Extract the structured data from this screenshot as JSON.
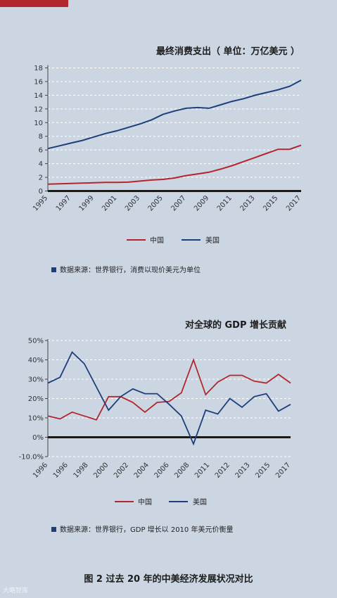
{
  "figure_caption": "图 2 过去 20 年的中美经济发展状况对比",
  "watermark": "大略智库",
  "colors": {
    "china": "#b3262d",
    "usa": "#1d3e7a",
    "accent_bar": "#b3262d",
    "background": "#ccd6e3"
  },
  "chart_data": [
    {
      "type": "line",
      "title": "最终消费支出（ 单位：万亿美元 ）",
      "y_ticks": [
        "0",
        "2",
        "4",
        "6",
        "8",
        "10",
        "12",
        "14",
        "16",
        "18"
      ],
      "ylim": [
        0,
        18
      ],
      "x_tick_labels": [
        "1995",
        "1997",
        "1999",
        "2001",
        "2003",
        "2005",
        "2007",
        "2009",
        "2011",
        "2013",
        "2015",
        "2017"
      ],
      "x": [
        1995,
        1996,
        1997,
        1998,
        1999,
        2000,
        2001,
        2002,
        2003,
        2004,
        2005,
        2006,
        2007,
        2008,
        2009,
        2010,
        2011,
        2012,
        2013,
        2014,
        2015,
        2016,
        2017
      ],
      "series": [
        {
          "name": "中国",
          "color": "#b3262d",
          "values": [
            1.0,
            1.05,
            1.1,
            1.15,
            1.2,
            1.25,
            1.25,
            1.3,
            1.45,
            1.6,
            1.7,
            1.9,
            2.25,
            2.5,
            2.75,
            3.2,
            3.7,
            4.3,
            4.9,
            5.5,
            6.1,
            6.1,
            6.7
          ]
        },
        {
          "name": "美国",
          "color": "#1d3e7a",
          "values": [
            6.2,
            6.6,
            7.0,
            7.4,
            7.9,
            8.4,
            8.8,
            9.3,
            9.8,
            10.4,
            11.2,
            11.7,
            12.1,
            12.2,
            12.1,
            12.6,
            13.1,
            13.5,
            14.0,
            14.4,
            14.8,
            15.3,
            16.2
          ]
        }
      ],
      "grid": "horizontal dashed",
      "legend": "bottom",
      "source": "数据来源：世界银行，消费以现价美元为单位"
    },
    {
      "type": "line",
      "title": "对全球的 GDP 增长贡献",
      "y_ticks": [
        "-10.0%",
        "0%",
        "10%",
        "20%",
        "30%",
        "40%",
        "50%"
      ],
      "ylim": [
        -10,
        50
      ],
      "x_tick_labels": [
        "1996",
        "1996",
        "1998",
        "2000",
        "2002",
        "2004",
        "2006",
        "2008",
        "2011",
        "2012",
        "2013",
        "2015",
        "2017"
      ],
      "series": [
        {
          "name": "中国",
          "color": "#b3262d",
          "values": [
            11,
            9.5,
            13,
            11,
            9,
            21,
            21,
            18,
            13,
            18,
            18.5,
            23,
            40,
            22,
            28.5,
            32,
            32,
            29,
            28,
            32.5,
            28
          ]
        },
        {
          "name": "美国",
          "color": "#1d3e7a",
          "values": [
            28,
            31,
            44,
            38,
            26,
            14,
            21,
            25,
            22.5,
            22.5,
            17,
            11,
            -3.5,
            14,
            12,
            20,
            15.5,
            21,
            22.5,
            13.5,
            17
          ]
        }
      ],
      "zero_line": true,
      "grid": "horizontal dashed",
      "legend": "bottom",
      "source": "数据来源：世界银行，GDP 增长以 2010 年美元价衡量"
    }
  ]
}
